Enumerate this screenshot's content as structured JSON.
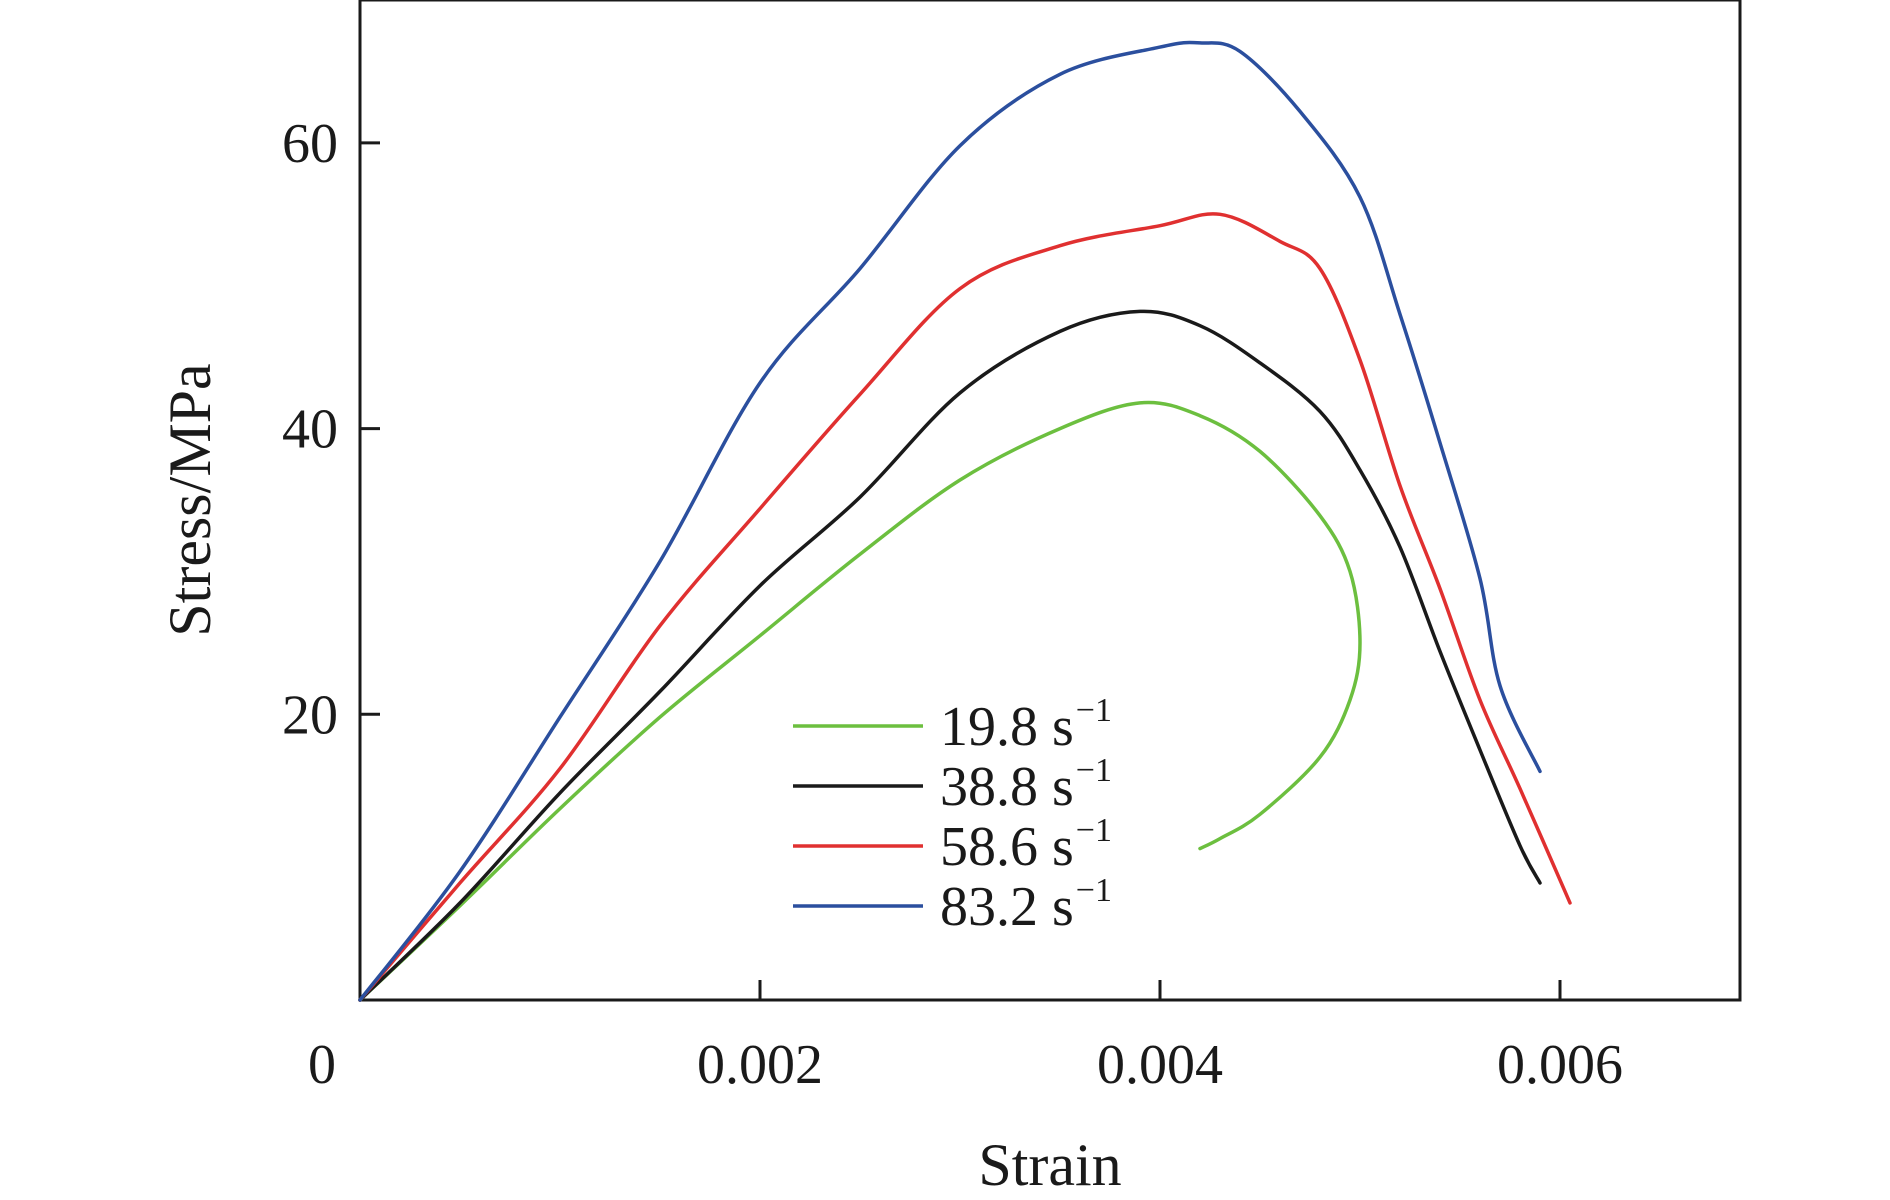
{
  "chart_data": {
    "type": "line",
    "title": "",
    "xlabel": "Strain",
    "ylabel": "Stress/MPa",
    "xlim": [
      0,
      0.0069
    ],
    "ylim": [
      0,
      70
    ],
    "x_ticks": [
      0.002,
      0.004,
      0.006
    ],
    "x_tick_labels": [
      "0.002",
      "0.004",
      "0.006"
    ],
    "y_ticks": [
      20,
      40,
      60
    ],
    "y_tick_labels": [
      "20",
      "40",
      "60"
    ],
    "origin_label": "0",
    "grid": false,
    "legend_position": "bottom-center",
    "series": [
      {
        "name": "19.8 s",
        "sup": "−1",
        "color": "#6cbf3f",
        "points": [
          [
            0,
            0
          ],
          [
            0.0005,
            6.6
          ],
          [
            0.001,
            13.4
          ],
          [
            0.0015,
            19.8
          ],
          [
            0.002,
            25.5
          ],
          [
            0.0025,
            31.2
          ],
          [
            0.003,
            36.4
          ],
          [
            0.0035,
            40.0
          ],
          [
            0.0039,
            41.8
          ],
          [
            0.0042,
            40.9
          ],
          [
            0.0045,
            38.4
          ],
          [
            0.0048,
            33.9
          ],
          [
            0.00495,
            30.0
          ],
          [
            0.005,
            25.0
          ],
          [
            0.00495,
            21.0
          ],
          [
            0.0048,
            17.0
          ],
          [
            0.0045,
            13.0
          ],
          [
            0.0043,
            11.3
          ],
          [
            0.0042,
            10.6
          ]
        ]
      },
      {
        "name": "38.8 s",
        "sup": "−1",
        "color": "#1a1a1a",
        "points": [
          [
            0,
            0
          ],
          [
            0.0005,
            6.8
          ],
          [
            0.001,
            14.5
          ],
          [
            0.0015,
            21.6
          ],
          [
            0.002,
            29.0
          ],
          [
            0.0025,
            35.2
          ],
          [
            0.003,
            42.5
          ],
          [
            0.0035,
            46.8
          ],
          [
            0.0039,
            48.2
          ],
          [
            0.0042,
            47.2
          ],
          [
            0.0045,
            44.6
          ],
          [
            0.0048,
            41.2
          ],
          [
            0.005,
            37.1
          ],
          [
            0.0052,
            31.7
          ],
          [
            0.0054,
            24.4
          ],
          [
            0.0056,
            17.5
          ],
          [
            0.0058,
            10.8
          ],
          [
            0.0059,
            8.2
          ]
        ]
      },
      {
        "name": "58.6 s",
        "sup": "−1",
        "color": "#e03030",
        "points": [
          [
            0,
            0
          ],
          [
            0.0005,
            8.2
          ],
          [
            0.001,
            16.2
          ],
          [
            0.0015,
            26.2
          ],
          [
            0.002,
            34.4
          ],
          [
            0.0025,
            42.4
          ],
          [
            0.003,
            49.8
          ],
          [
            0.0035,
            52.8
          ],
          [
            0.004,
            54.2
          ],
          [
            0.0043,
            55.0
          ],
          [
            0.0046,
            53.1
          ],
          [
            0.0048,
            51.2
          ],
          [
            0.005,
            44.8
          ],
          [
            0.0052,
            36.0
          ],
          [
            0.0054,
            28.8
          ],
          [
            0.0056,
            21.0
          ],
          [
            0.0058,
            14.8
          ],
          [
            0.00605,
            6.8
          ]
        ]
      },
      {
        "name": "83.2 s",
        "sup": "−1",
        "color": "#2b4f9e",
        "points": [
          [
            0,
            0
          ],
          [
            0.0005,
            9.0
          ],
          [
            0.001,
            19.8
          ],
          [
            0.0015,
            30.7
          ],
          [
            0.002,
            43.2
          ],
          [
            0.0025,
            51.2
          ],
          [
            0.003,
            59.8
          ],
          [
            0.0035,
            64.8
          ],
          [
            0.004,
            66.7
          ],
          [
            0.0042,
            67.0
          ],
          [
            0.0044,
            66.4
          ],
          [
            0.0047,
            62.2
          ],
          [
            0.005,
            56.2
          ],
          [
            0.0052,
            48.0
          ],
          [
            0.0054,
            39.0
          ],
          [
            0.0056,
            29.5
          ],
          [
            0.0057,
            22.0
          ],
          [
            0.0059,
            16.0
          ]
        ]
      }
    ]
  }
}
